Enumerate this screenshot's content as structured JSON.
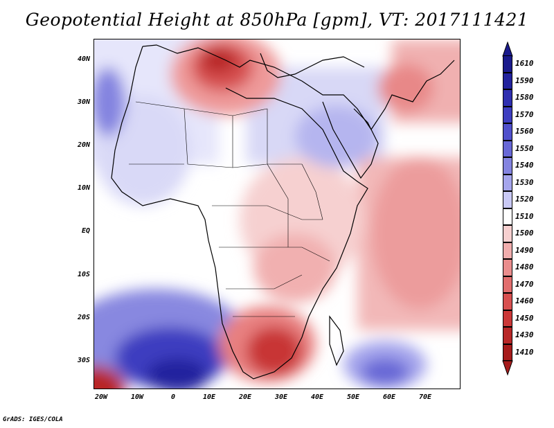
{
  "title": "Geopotential Height at 850hPa [gpm], VT: 2017111421",
  "credit": "GrADS: IGES/COLA",
  "lat_labels": [
    "40N",
    "30N",
    "20N",
    "10N",
    "EQ",
    "10S",
    "20S",
    "30S"
  ],
  "lon_labels": [
    "20W",
    "10W",
    "0",
    "10E",
    "20E",
    "30E",
    "40E",
    "50E",
    "60E",
    "70E"
  ],
  "colorbar": {
    "levels": [
      "1610",
      "1590",
      "1580",
      "1570",
      "1560",
      "1550",
      "1540",
      "1530",
      "1520",
      "1510",
      "1500",
      "1490",
      "1480",
      "1470",
      "1460",
      "1450",
      "1430",
      "1410"
    ],
    "colors": [
      "#1b1b8c",
      "#23239e",
      "#2f2fb0",
      "#3e3ec0",
      "#5050cc",
      "#6868d6",
      "#8484e0",
      "#a5a5ec",
      "#c9c9f5",
      "#ffffff",
      "#f7d0d0",
      "#f1adad",
      "#ea8d8d",
      "#e26e6e",
      "#d85050",
      "#cb3838",
      "#b82828",
      "#a61b1b"
    ]
  }
}
